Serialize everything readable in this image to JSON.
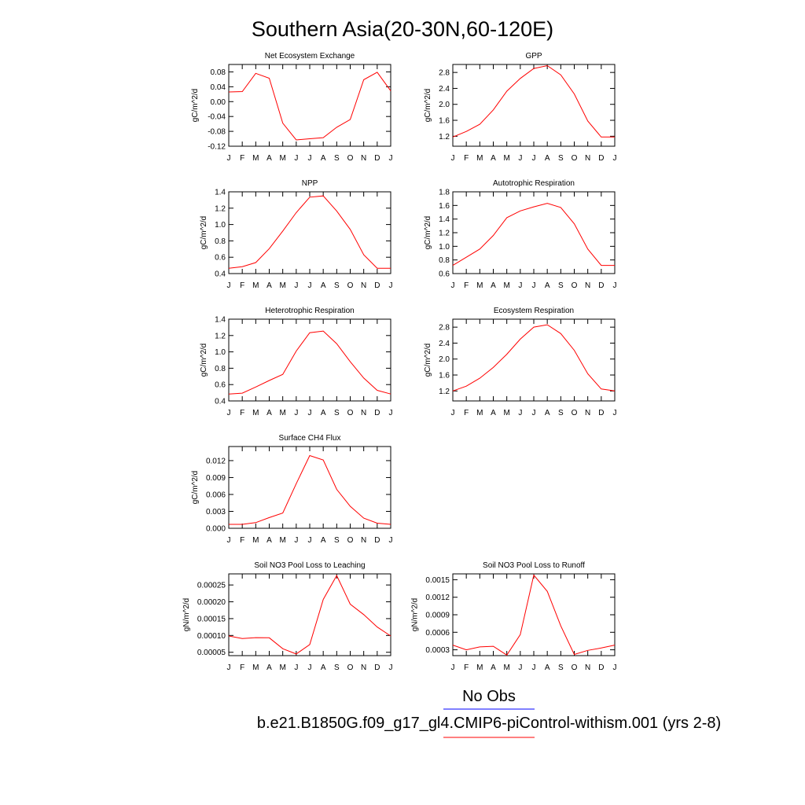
{
  "figure": {
    "title": "Southern Asia(20-30N,60-120E)",
    "line_color": "#ff0000"
  },
  "legend": {
    "items": [
      {
        "label": "No Obs",
        "color": "#0000ff"
      },
      {
        "label": "b.e21.B1850G.f09_g17_gl4.CMIP6-piControl-withism.001 (yrs 2-8)",
        "color": "#ff0000"
      }
    ]
  },
  "chart_data": [
    {
      "type": "line",
      "title": "Net Ecosystem Exchange",
      "ylabel": "gC/m^2/d",
      "x": [
        "J",
        "F",
        "M",
        "A",
        "M",
        "J",
        "J",
        "A",
        "S",
        "O",
        "N",
        "D",
        "J"
      ],
      "ylim": [
        -0.12,
        0.1
      ],
      "yticks": [
        "0.08",
        "0.04",
        "0.00",
        "-0.04",
        "-0.08",
        "-0.12"
      ],
      "series": [
        {
          "values": [
            0.026,
            0.027,
            0.076,
            0.063,
            -0.058,
            -0.103,
            -0.1,
            -0.097,
            -0.069,
            -0.048,
            0.059,
            0.079,
            0.029
          ]
        }
      ]
    },
    {
      "type": "line",
      "title": "GPP",
      "ylabel": "gC/m^2/d",
      "x": [
        "J",
        "F",
        "M",
        "A",
        "M",
        "J",
        "J",
        "A",
        "S",
        "O",
        "N",
        "D",
        "J"
      ],
      "ylim": [
        0.95,
        3.0
      ],
      "yticks": [
        "2.8",
        "2.4",
        "2.0",
        "1.6",
        "1.2"
      ],
      "series": [
        {
          "values": [
            1.18,
            1.32,
            1.5,
            1.86,
            2.33,
            2.65,
            2.9,
            2.97,
            2.74,
            2.26,
            1.58,
            1.18,
            1.18
          ]
        }
      ]
    },
    {
      "type": "line",
      "title": "NPP",
      "ylabel": "gC/m^2/d",
      "x": [
        "J",
        "F",
        "M",
        "A",
        "M",
        "J",
        "J",
        "A",
        "S",
        "O",
        "N",
        "D",
        "J"
      ],
      "ylim": [
        0.4,
        1.4
      ],
      "yticks": [
        "1.4",
        "1.2",
        "1.0",
        "0.8",
        "0.6",
        "0.4"
      ],
      "series": [
        {
          "values": [
            0.465,
            0.485,
            0.535,
            0.705,
            0.92,
            1.145,
            1.335,
            1.35,
            1.165,
            0.94,
            0.63,
            0.465,
            0.465
          ]
        }
      ]
    },
    {
      "type": "line",
      "title": "Autotrophic Respiration",
      "ylabel": "gC/m^2/d",
      "x": [
        "J",
        "F",
        "M",
        "A",
        "M",
        "J",
        "J",
        "A",
        "S",
        "O",
        "N",
        "D",
        "J"
      ],
      "ylim": [
        0.6,
        1.8
      ],
      "yticks": [
        "1.8",
        "1.6",
        "1.4",
        "1.2",
        "1.0",
        "0.8",
        "0.6"
      ],
      "series": [
        {
          "values": [
            0.72,
            0.84,
            0.96,
            1.16,
            1.42,
            1.52,
            1.58,
            1.63,
            1.57,
            1.33,
            0.96,
            0.72,
            0.72
          ]
        }
      ]
    },
    {
      "type": "line",
      "title": "Heterotrophic Respiration",
      "ylabel": "gC/m^2/d",
      "x": [
        "J",
        "F",
        "M",
        "A",
        "M",
        "J",
        "J",
        "A",
        "S",
        "O",
        "N",
        "D",
        "J"
      ],
      "ylim": [
        0.4,
        1.4
      ],
      "yticks": [
        "1.4",
        "1.2",
        "1.0",
        "0.8",
        "0.6",
        "0.4"
      ],
      "series": [
        {
          "values": [
            0.485,
            0.495,
            0.57,
            0.65,
            0.725,
            1.01,
            1.235,
            1.255,
            1.1,
            0.88,
            0.68,
            0.53,
            0.485
          ]
        }
      ]
    },
    {
      "type": "line",
      "title": "Ecosystem Respiration",
      "ylabel": "gC/m^2/d",
      "x": [
        "J",
        "F",
        "M",
        "A",
        "M",
        "J",
        "J",
        "A",
        "S",
        "O",
        "N",
        "D",
        "J"
      ],
      "ylim": [
        0.95,
        3.0
      ],
      "yticks": [
        "2.8",
        "2.4",
        "2.0",
        "1.6",
        "1.2"
      ],
      "series": [
        {
          "values": [
            1.2,
            1.32,
            1.52,
            1.79,
            2.12,
            2.5,
            2.8,
            2.86,
            2.64,
            2.22,
            1.63,
            1.25,
            1.2
          ]
        }
      ]
    },
    {
      "type": "line",
      "title": "Surface CH4 Flux",
      "ylabel": "gC/m^2/d",
      "x": [
        "J",
        "F",
        "M",
        "A",
        "M",
        "J",
        "J",
        "A",
        "S",
        "O",
        "N",
        "D",
        "J"
      ],
      "ylim": [
        0.0,
        0.0145
      ],
      "yticks": [
        "0.012",
        "0.009",
        "0.006",
        "0.003",
        "0.000"
      ],
      "series": [
        {
          "values": [
            0.0007,
            0.0007,
            0.001,
            0.0019,
            0.0027,
            0.0079,
            0.0129,
            0.0121,
            0.0069,
            0.0039,
            0.0018,
            0.0009,
            0.0007
          ]
        }
      ]
    },
    {
      "type": "line",
      "title": "Soil NO3 Pool Loss to Leaching",
      "ylabel": "gN/m^2/d",
      "x": [
        "J",
        "F",
        "M",
        "A",
        "M",
        "J",
        "J",
        "A",
        "S",
        "O",
        "N",
        "D",
        "J"
      ],
      "ylim": [
        4e-05,
        0.000283
      ],
      "yticks": [
        "0.00025",
        "0.00020",
        "0.00015",
        "0.00010",
        "0.00005"
      ],
      "series": [
        {
          "values": [
            9.85e-05,
            9.1e-05,
            9.35e-05,
            9.3e-05,
            6.05e-05,
            4.48e-05,
            7.3e-05,
            0.000207,
            0.000278,
            0.000193,
            0.000162,
            0.000125,
            9.85e-05
          ]
        }
      ]
    },
    {
      "type": "line",
      "title": "Soil NO3 Pool Loss to Runoff",
      "ylabel": "gN/m^2/d",
      "x": [
        "J",
        "F",
        "M",
        "A",
        "M",
        "J",
        "J",
        "A",
        "S",
        "O",
        "N",
        "D",
        "J"
      ],
      "ylim": [
        0.0002,
        0.0016
      ],
      "yticks": [
        "0.0015",
        "0.0012",
        "0.0009",
        "0.0006",
        "0.0003"
      ],
      "series": [
        {
          "values": [
            0.00038,
            0.0003,
            0.00035,
            0.00036,
            0.00021,
            0.00056,
            0.00158,
            0.0013,
            0.00071,
            0.00022,
            0.00029,
            0.00033,
            0.00038
          ]
        }
      ]
    }
  ]
}
